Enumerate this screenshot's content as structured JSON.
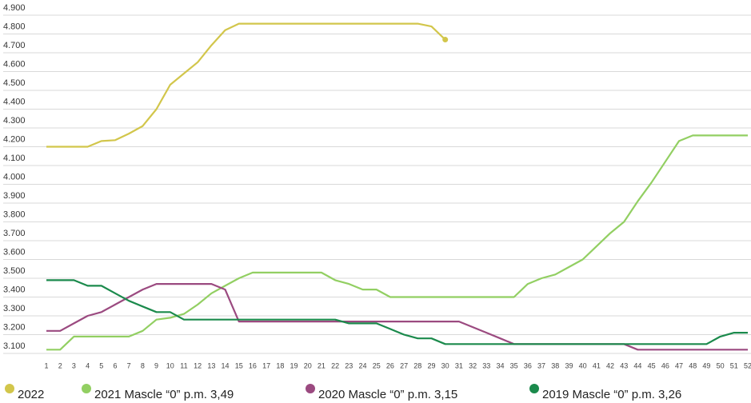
{
  "chart_data": {
    "type": "line",
    "categories": [
      "1",
      "2",
      "3",
      "4",
      "5",
      "6",
      "7",
      "8",
      "9",
      "10",
      "11",
      "12",
      "13",
      "14",
      "15",
      "16",
      "17",
      "18",
      "19",
      "20",
      "21",
      "22",
      "23",
      "24",
      "25",
      "26",
      "27",
      "28",
      "29",
      "30",
      "31",
      "32",
      "33",
      "34",
      "35",
      "36",
      "37",
      "38",
      "39",
      "40",
      "41",
      "42",
      "43",
      "44",
      "45",
      "46",
      "47",
      "48",
      "49",
      "50",
      "51",
      "52"
    ],
    "ylim": [
      3100,
      4900
    ],
    "yticks": [
      {
        "value": 3100,
        "label": "3.100"
      },
      {
        "value": 3200,
        "label": "3.200"
      },
      {
        "value": 3300,
        "label": "3.300"
      },
      {
        "value": 3400,
        "label": "3.400"
      },
      {
        "value": 3500,
        "label": "3.500"
      },
      {
        "value": 3600,
        "label": "3.600"
      },
      {
        "value": 3700,
        "label": "3.700"
      },
      {
        "value": 3800,
        "label": "3.800"
      },
      {
        "value": 3900,
        "label": "3.900"
      },
      {
        "value": 4000,
        "label": "4.000"
      },
      {
        "value": 4100,
        "label": "4.100"
      },
      {
        "value": 4200,
        "label": "4.200"
      },
      {
        "value": 4300,
        "label": "4.300"
      },
      {
        "value": 4400,
        "label": "4.400"
      },
      {
        "value": 4500,
        "label": "4.500"
      },
      {
        "value": 4600,
        "label": "4.600"
      },
      {
        "value": 4700,
        "label": "4.700"
      },
      {
        "value": 4800,
        "label": "4.800"
      },
      {
        "value": 4900,
        "label": "4.900"
      }
    ],
    "grid": true,
    "series": [
      {
        "name": "2022",
        "color": "#d2c64b",
        "values": [
          4200,
          4200,
          4200,
          4200,
          4230,
          4235,
          4270,
          4310,
          4400,
          4530,
          4590,
          4650,
          4740,
          4820,
          4855,
          4855,
          4855,
          4855,
          4855,
          4855,
          4855,
          4855,
          4855,
          4855,
          4855,
          4855,
          4855,
          4855,
          4840,
          4770,
          null,
          null,
          null,
          null,
          null,
          null,
          null,
          null,
          null,
          null,
          null,
          null,
          null,
          null,
          null,
          null,
          null,
          null,
          null,
          null,
          null,
          null
        ]
      },
      {
        "name": "2021 Mascle “0” p.m. 3,49",
        "color": "#92cf62",
        "values": [
          3120,
          3120,
          3190,
          3190,
          3190,
          3190,
          3190,
          3220,
          3280,
          3290,
          3310,
          3360,
          3420,
          3460,
          3500,
          3530,
          3530,
          3530,
          3530,
          3530,
          3530,
          3490,
          3470,
          3440,
          3440,
          3400,
          3400,
          3400,
          3400,
          3400,
          3400,
          3400,
          3400,
          3400,
          3400,
          3470,
          3500,
          3520,
          3560,
          3600,
          3670,
          3740,
          3800,
          3910,
          4010,
          4120,
          4230,
          4260,
          4260,
          4260,
          4260,
          4260
        ]
      },
      {
        "name": "2020 Mascle “0” p.m. 3,15",
        "color": "#9b4a80",
        "values": [
          3220,
          3220,
          3260,
          3300,
          3320,
          3360,
          3400,
          3440,
          3470,
          3470,
          3470,
          3470,
          3470,
          3440,
          3270,
          3270,
          3270,
          3270,
          3270,
          3270,
          3270,
          3270,
          3270,
          3270,
          3270,
          3270,
          3270,
          3270,
          3270,
          3270,
          3270,
          3240,
          3210,
          3180,
          3150,
          3150,
          3150,
          3150,
          3150,
          3150,
          3150,
          3150,
          3150,
          3120,
          3120,
          3120,
          3120,
          3120,
          3120,
          3120,
          3120,
          3120
        ]
      },
      {
        "name": "2019 Mascle “0” p.m. 3,26",
        "color": "#1b8a4c",
        "values": [
          3490,
          3490,
          3490,
          3460,
          3460,
          3420,
          3380,
          3350,
          3320,
          3320,
          3280,
          3280,
          3280,
          3280,
          3280,
          3280,
          3280,
          3280,
          3280,
          3280,
          3280,
          3280,
          3260,
          3260,
          3260,
          3230,
          3200,
          3180,
          3180,
          3150,
          3150,
          3150,
          3150,
          3150,
          3150,
          3150,
          3150,
          3150,
          3150,
          3150,
          3150,
          3150,
          3150,
          3150,
          3150,
          3150,
          3150,
          3150,
          3150,
          3190,
          3210,
          3210
        ]
      }
    ]
  }
}
